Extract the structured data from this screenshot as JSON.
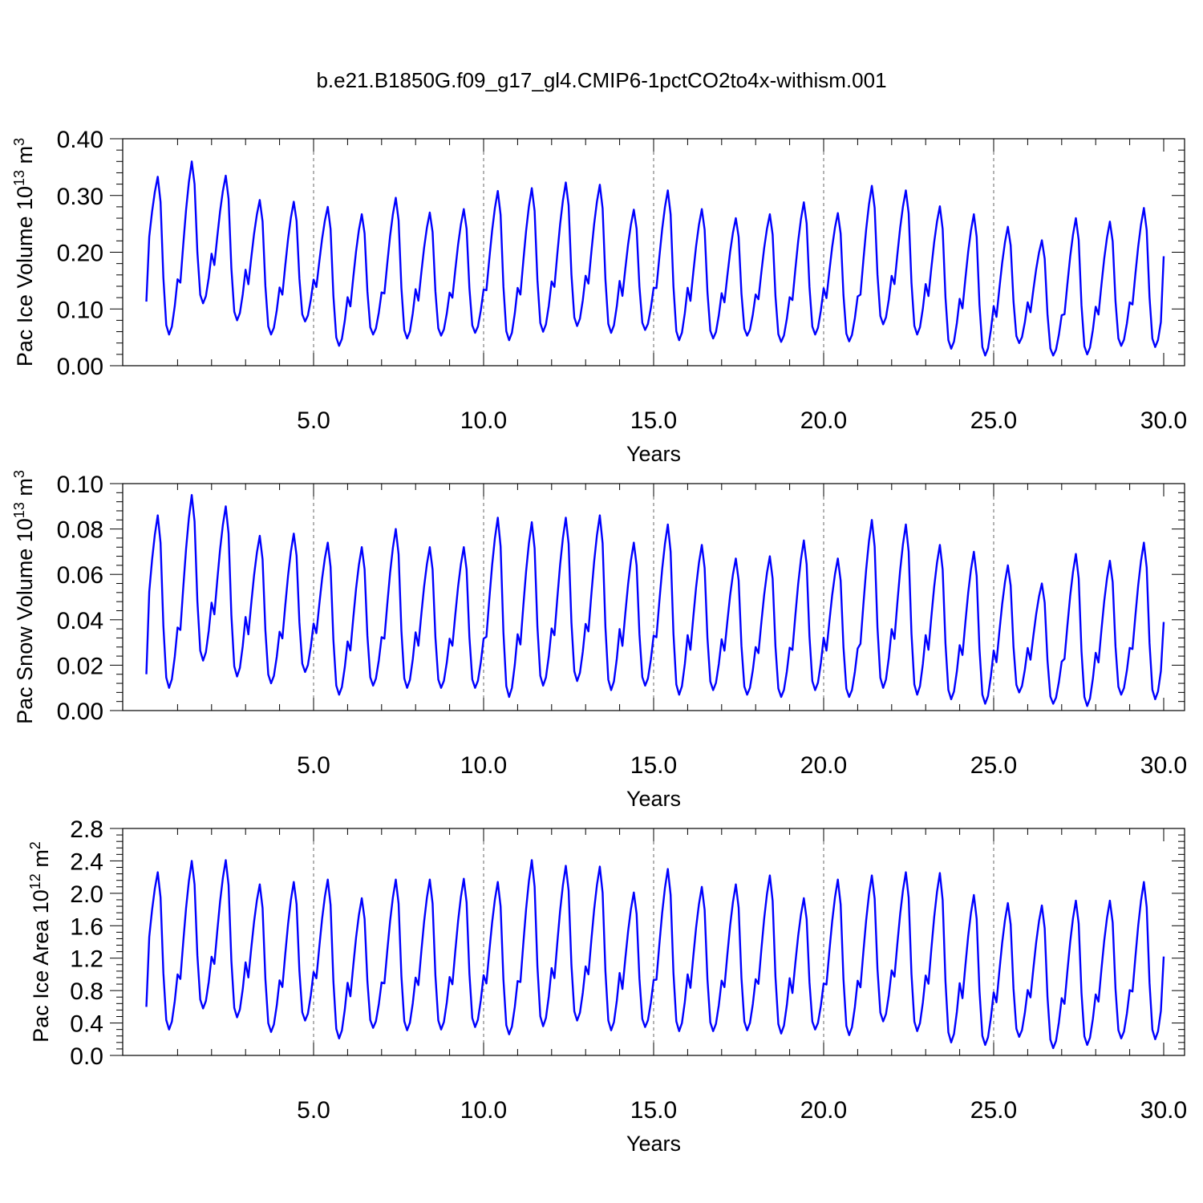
{
  "title": "b.e21.B1850G.f09_g17_gl4.CMIP6-1pctCO2to4x-withism.001",
  "chart_data": [
    {
      "type": "line",
      "xlabel": "Years",
      "ylabel": "Pac Ice Volume 10",
      "ylabel_exp": "13",
      "ylabel_unit": " m",
      "ylabel_unit_exp": "3",
      "xlim": [
        0.083,
        30
      ],
      "ylim": [
        0,
        0.4
      ],
      "xticks": [
        5,
        10,
        15,
        20,
        25,
        30
      ],
      "xtick_labels": [
        "5.0",
        "10.0",
        "15.0",
        "20.0",
        "25.0",
        "30.0"
      ],
      "yticks": [
        0,
        0.1,
        0.2,
        0.3,
        0.4
      ],
      "ytick_labels": [
        "0.00",
        "0.10",
        "0.20",
        "0.30",
        "0.40"
      ],
      "grid": "vertical dashed at major x ticks",
      "series_color": "#0000ff",
      "yearly": [
        {
          "max": 0.333,
          "min": 0.055
        },
        {
          "max": 0.36,
          "min": 0.11
        },
        {
          "max": 0.335,
          "min": 0.08
        },
        {
          "max": 0.292,
          "min": 0.055
        },
        {
          "max": 0.289,
          "min": 0.078
        },
        {
          "max": 0.28,
          "min": 0.035
        },
        {
          "max": 0.267,
          "min": 0.055
        },
        {
          "max": 0.296,
          "min": 0.048
        },
        {
          "max": 0.27,
          "min": 0.053
        },
        {
          "max": 0.276,
          "min": 0.058
        },
        {
          "max": 0.308,
          "min": 0.045
        },
        {
          "max": 0.313,
          "min": 0.06
        },
        {
          "max": 0.323,
          "min": 0.07
        },
        {
          "max": 0.319,
          "min": 0.058
        },
        {
          "max": 0.275,
          "min": 0.063
        },
        {
          "max": 0.309,
          "min": 0.045
        },
        {
          "max": 0.276,
          "min": 0.048
        },
        {
          "max": 0.26,
          "min": 0.053
        },
        {
          "max": 0.267,
          "min": 0.042
        },
        {
          "max": 0.288,
          "min": 0.055
        },
        {
          "max": 0.269,
          "min": 0.043
        },
        {
          "max": 0.317,
          "min": 0.073
        },
        {
          "max": 0.309,
          "min": 0.055
        },
        {
          "max": 0.281,
          "min": 0.03
        },
        {
          "max": 0.267,
          "min": 0.018
        },
        {
          "max": 0.245,
          "min": 0.04
        },
        {
          "max": 0.221,
          "min": 0.018
        },
        {
          "max": 0.26,
          "min": 0.02
        },
        {
          "max": 0.254,
          "min": 0.035
        },
        {
          "max": 0.278,
          "min": 0.033
        }
      ],
      "start": 0.113,
      "end": 0.193
    },
    {
      "type": "line",
      "xlabel": "Years",
      "ylabel": "Pac Snow Volume 10",
      "ylabel_exp": "13",
      "ylabel_unit": " m",
      "ylabel_unit_exp": "3",
      "xlim": [
        0.083,
        30
      ],
      "ylim": [
        0,
        0.1
      ],
      "xticks": [
        5,
        10,
        15,
        20,
        25,
        30
      ],
      "xtick_labels": [
        "5.0",
        "10.0",
        "15.0",
        "20.0",
        "25.0",
        "30.0"
      ],
      "yticks": [
        0,
        0.02,
        0.04,
        0.06,
        0.08,
        0.1
      ],
      "ytick_labels": [
        "0.00",
        "0.02",
        "0.04",
        "0.06",
        "0.08",
        "0.10"
      ],
      "grid": "vertical dashed at major x ticks",
      "series_color": "#0000ff",
      "yearly": [
        {
          "max": 0.086,
          "min": 0.01
        },
        {
          "max": 0.095,
          "min": 0.022
        },
        {
          "max": 0.09,
          "min": 0.015
        },
        {
          "max": 0.077,
          "min": 0.012
        },
        {
          "max": 0.078,
          "min": 0.017
        },
        {
          "max": 0.074,
          "min": 0.007
        },
        {
          "max": 0.072,
          "min": 0.011
        },
        {
          "max": 0.08,
          "min": 0.01
        },
        {
          "max": 0.072,
          "min": 0.01
        },
        {
          "max": 0.072,
          "min": 0.01
        },
        {
          "max": 0.085,
          "min": 0.006
        },
        {
          "max": 0.083,
          "min": 0.011
        },
        {
          "max": 0.085,
          "min": 0.013
        },
        {
          "max": 0.086,
          "min": 0.009
        },
        {
          "max": 0.074,
          "min": 0.011
        },
        {
          "max": 0.082,
          "min": 0.007
        },
        {
          "max": 0.073,
          "min": 0.009
        },
        {
          "max": 0.067,
          "min": 0.007
        },
        {
          "max": 0.068,
          "min": 0.006
        },
        {
          "max": 0.075,
          "min": 0.009
        },
        {
          "max": 0.067,
          "min": 0.006
        },
        {
          "max": 0.084,
          "min": 0.01
        },
        {
          "max": 0.082,
          "min": 0.007
        },
        {
          "max": 0.073,
          "min": 0.005
        },
        {
          "max": 0.07,
          "min": 0.003
        },
        {
          "max": 0.064,
          "min": 0.008
        },
        {
          "max": 0.056,
          "min": 0.003
        },
        {
          "max": 0.069,
          "min": 0.002
        },
        {
          "max": 0.066,
          "min": 0.007
        },
        {
          "max": 0.074,
          "min": 0.005
        }
      ],
      "start": 0.016,
      "end": 0.039
    },
    {
      "type": "line",
      "xlabel": "Years",
      "ylabel": "Pac Ice Area 10",
      "ylabel_exp": "12",
      "ylabel_unit": " m",
      "ylabel_unit_exp": "2",
      "xlim": [
        0.083,
        30
      ],
      "ylim": [
        0,
        2.8
      ],
      "xticks": [
        5,
        10,
        15,
        20,
        25,
        30
      ],
      "xtick_labels": [
        "5.0",
        "10.0",
        "15.0",
        "20.0",
        "25.0",
        "30.0"
      ],
      "yticks": [
        0,
        0.4,
        0.8,
        1.2,
        1.6,
        2.0,
        2.4,
        2.8
      ],
      "ytick_labels": [
        "0.0",
        "0.4",
        "0.8",
        "1.2",
        "1.6",
        "2.0",
        "2.4",
        "2.8"
      ],
      "grid": "vertical dashed at major x ticks",
      "series_color": "#0000ff",
      "yearly": [
        {
          "max": 2.26,
          "min": 0.32
        },
        {
          "max": 2.4,
          "min": 0.58
        },
        {
          "max": 2.41,
          "min": 0.47
        },
        {
          "max": 2.11,
          "min": 0.29
        },
        {
          "max": 2.14,
          "min": 0.43
        },
        {
          "max": 2.17,
          "min": 0.21
        },
        {
          "max": 1.94,
          "min": 0.34
        },
        {
          "max": 2.17,
          "min": 0.31
        },
        {
          "max": 2.17,
          "min": 0.32
        },
        {
          "max": 2.18,
          "min": 0.35
        },
        {
          "max": 2.14,
          "min": 0.26
        },
        {
          "max": 2.41,
          "min": 0.36
        },
        {
          "max": 2.34,
          "min": 0.43
        },
        {
          "max": 2.33,
          "min": 0.31
        },
        {
          "max": 2.01,
          "min": 0.35
        },
        {
          "max": 2.3,
          "min": 0.3
        },
        {
          "max": 2.08,
          "min": 0.3
        },
        {
          "max": 2.11,
          "min": 0.31
        },
        {
          "max": 2.22,
          "min": 0.27
        },
        {
          "max": 1.94,
          "min": 0.32
        },
        {
          "max": 2.17,
          "min": 0.25
        },
        {
          "max": 2.22,
          "min": 0.42
        },
        {
          "max": 2.26,
          "min": 0.3
        },
        {
          "max": 2.25,
          "min": 0.16
        },
        {
          "max": 1.98,
          "min": 0.13
        },
        {
          "max": 1.88,
          "min": 0.23
        },
        {
          "max": 1.85,
          "min": 0.09
        },
        {
          "max": 1.91,
          "min": 0.13
        },
        {
          "max": 1.91,
          "min": 0.21
        },
        {
          "max": 2.14,
          "min": 0.2
        }
      ],
      "start": 0.6,
      "end": 1.22
    }
  ]
}
